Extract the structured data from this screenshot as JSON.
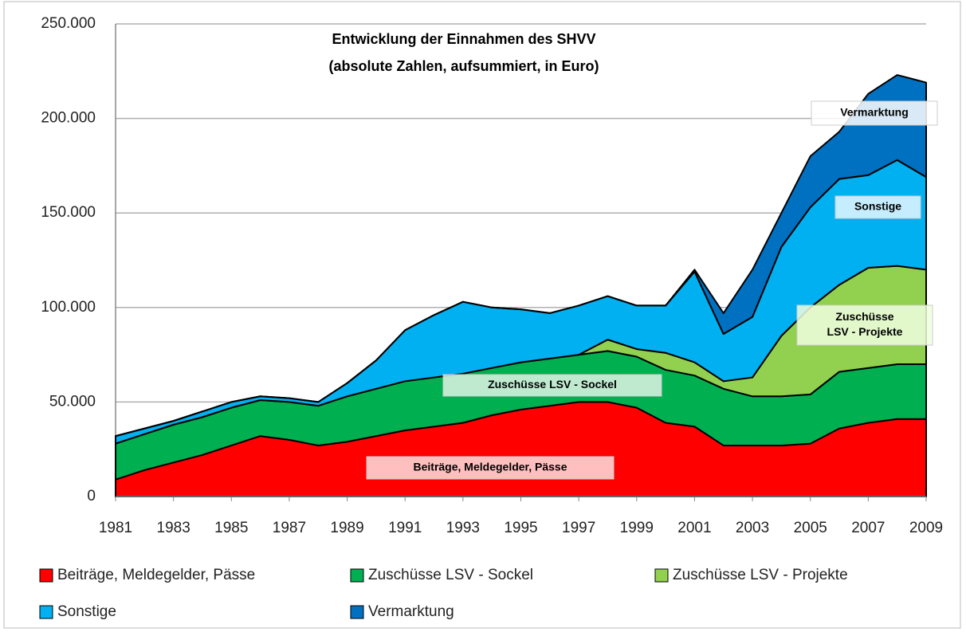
{
  "chart_data": {
    "type": "stacked_area",
    "title": "Entwicklung der Einnahmen des SHVV",
    "subtitle": "(absolute Zahlen, aufsummiert, in Euro)",
    "x": [
      1981,
      1982,
      1983,
      1984,
      1985,
      1986,
      1987,
      1988,
      1989,
      1990,
      1991,
      1992,
      1993,
      1994,
      1995,
      1996,
      1997,
      1998,
      1999,
      2000,
      2001,
      2002,
      2003,
      2004,
      2005,
      2006,
      2007,
      2008,
      2009
    ],
    "xlim": [
      1981,
      2009
    ],
    "xticks": [
      1981,
      1983,
      1985,
      1987,
      1989,
      1991,
      1993,
      1995,
      1997,
      1999,
      2001,
      2003,
      2005,
      2007,
      2009
    ],
    "ylim": [
      0,
      250000
    ],
    "yticks": [
      {
        "value": 0,
        "label": "0"
      },
      {
        "value": 50000,
        "label": "50.000"
      },
      {
        "value": 100000,
        "label": "100.000"
      },
      {
        "value": 150000,
        "label": "150.000"
      },
      {
        "value": 200000,
        "label": "200.000"
      },
      {
        "value": 250000,
        "label": "250.000"
      }
    ],
    "grid": true,
    "legend": "bottom",
    "series": [
      {
        "name": "Beiträge, Meldegelder, Pässe",
        "color": "#ff0000",
        "values": [
          9000,
          14000,
          18000,
          22000,
          27000,
          32000,
          30000,
          27000,
          29000,
          32000,
          35000,
          37000,
          39000,
          43000,
          46000,
          48000,
          50000,
          50000,
          47000,
          39000,
          37000,
          27000,
          27000,
          27000,
          28000,
          36000,
          39000,
          41000,
          41000
        ]
      },
      {
        "name": "Zuschüsse LSV - Sockel",
        "color": "#00b050",
        "values": [
          19000,
          19000,
          20000,
          20000,
          20000,
          19000,
          20000,
          21000,
          24000,
          25000,
          26000,
          26000,
          26000,
          25000,
          25000,
          25000,
          25000,
          27000,
          27000,
          28000,
          27000,
          30000,
          26000,
          26000,
          26000,
          30000,
          29000,
          29000,
          29000
        ]
      },
      {
        "name": "Zuschüsse LSV - Projekte",
        "color": "#92d050",
        "values": [
          0,
          0,
          0,
          0,
          0,
          0,
          0,
          0,
          0,
          0,
          0,
          0,
          0,
          0,
          0,
          0,
          0,
          6000,
          4000,
          9000,
          7000,
          4000,
          10000,
          32000,
          46000,
          46000,
          53000,
          52000,
          50000
        ]
      },
      {
        "name": "Sonstige",
        "color": "#00b0f0",
        "values": [
          4000,
          3000,
          2000,
          3000,
          3000,
          2000,
          2000,
          2000,
          7000,
          15000,
          27000,
          33000,
          38000,
          32000,
          28000,
          24000,
          26000,
          23000,
          23000,
          25000,
          48000,
          25000,
          32000,
          47000,
          53000,
          56000,
          49000,
          56000,
          49000
        ]
      },
      {
        "name": "Vermarktung",
        "color": "#0070c0",
        "values": [
          0,
          0,
          0,
          0,
          0,
          0,
          0,
          0,
          0,
          0,
          0,
          0,
          0,
          0,
          0,
          0,
          0,
          0,
          0,
          0,
          1000,
          11000,
          25000,
          18000,
          27000,
          25000,
          43000,
          45000,
          50000
        ]
      }
    ],
    "annotations": [
      {
        "lines": [
          "Vermarktung"
        ]
      },
      {
        "lines": [
          "Sonstige"
        ]
      },
      {
        "lines": [
          "Zuschüsse",
          "LSV - Projekte"
        ]
      },
      {
        "lines": [
          "Zuschüsse LSV - Sockel"
        ]
      },
      {
        "lines": [
          "Beiträge, Meldegelder, Pässe"
        ]
      }
    ]
  }
}
